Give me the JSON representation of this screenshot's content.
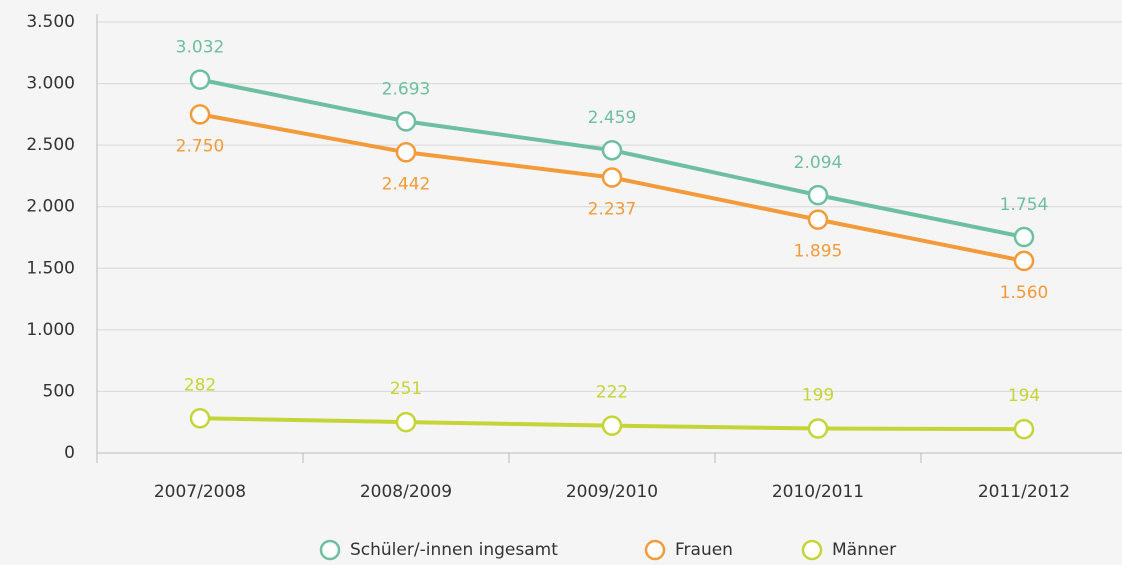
{
  "chart_data": {
    "type": "line",
    "categories": [
      "2007/2008",
      "2008/2009",
      "2009/2010",
      "2010/2011",
      "2011/2012"
    ],
    "series": [
      {
        "name": "Schüler/-innen ingesamt",
        "color": "#6dbf9f",
        "values": [
          3032,
          2693,
          2459,
          2094,
          1754
        ],
        "value_labels": [
          "3.032",
          "2.693",
          "2.459",
          "2.094",
          "1.754"
        ]
      },
      {
        "name": "Frauen",
        "color": "#f39a3a",
        "values": [
          2750,
          2442,
          2237,
          1895,
          1560
        ],
        "value_labels": [
          "2.750",
          "2.442",
          "2.237",
          "1.895",
          "1.560"
        ]
      },
      {
        "name": "Männer",
        "color": "#c5d436",
        "values": [
          282,
          251,
          222,
          199,
          194
        ],
        "value_labels": [
          "282",
          "251",
          "222",
          "199",
          "194"
        ]
      }
    ],
    "ylim": [
      0,
      3500
    ],
    "yticks": [
      0,
      500,
      {
        "value": 1000,
        "label": "1.000"
      },
      {
        "value": 1500,
        "label": "1.500"
      },
      {
        "value": 2000,
        "label": "2.000"
      },
      {
        "value": 2500,
        "label": "2.500"
      },
      {
        "value": 3000,
        "label": "3.000"
      },
      {
        "value": 3500,
        "label": "3.500"
      }
    ],
    "grid": true
  }
}
